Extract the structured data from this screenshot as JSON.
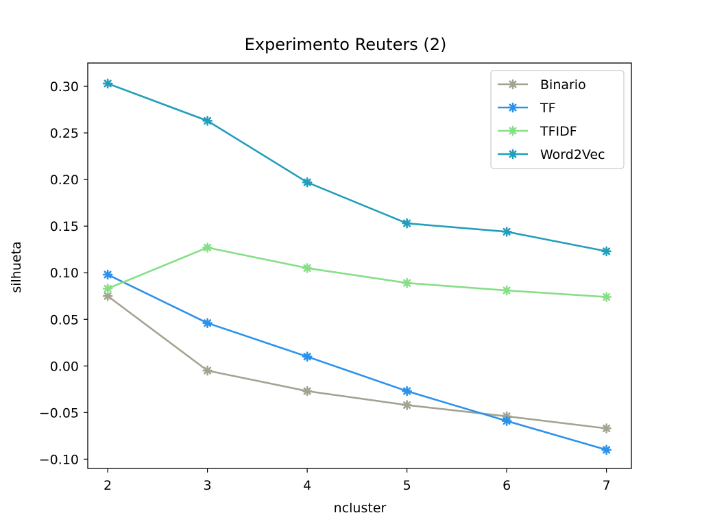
{
  "chart_data": {
    "type": "line",
    "title": "Experimento Reuters (2)",
    "xlabel": "ncluster",
    "ylabel": "silhueta",
    "x": [
      2,
      3,
      4,
      5,
      6,
      7
    ],
    "xlim": [
      1.8,
      7.25
    ],
    "ylim": [
      -0.11,
      0.325
    ],
    "xticks": [
      2,
      3,
      4,
      5,
      6,
      7
    ],
    "yticks": [
      -0.1,
      -0.05,
      0.0,
      0.05,
      0.1,
      0.15,
      0.2,
      0.25,
      0.3
    ],
    "ytick_labels": [
      "−0.10",
      "−0.05",
      "0.00",
      "0.05",
      "0.10",
      "0.15",
      "0.20",
      "0.25",
      "0.30"
    ],
    "xtick_labels": [
      "2",
      "3",
      "4",
      "5",
      "6",
      "7"
    ],
    "grid": false,
    "legend_position": "top-right",
    "marker": "star",
    "series": [
      {
        "name": "Binario",
        "color": "#a3a392",
        "values": [
          0.075,
          -0.005,
          -0.027,
          -0.042,
          -0.054,
          -0.067
        ]
      },
      {
        "name": "TF",
        "color": "#2b91eb",
        "values": [
          0.098,
          0.046,
          0.01,
          -0.027,
          -0.059,
          -0.09
        ]
      },
      {
        "name": "TFIDF",
        "color": "#86df86",
        "values": [
          0.083,
          0.127,
          0.105,
          0.089,
          0.081,
          0.074
        ]
      },
      {
        "name": "Word2Vec",
        "color": "#229ebb",
        "values": [
          0.303,
          0.263,
          0.197,
          0.153,
          0.144,
          0.123
        ]
      }
    ]
  }
}
